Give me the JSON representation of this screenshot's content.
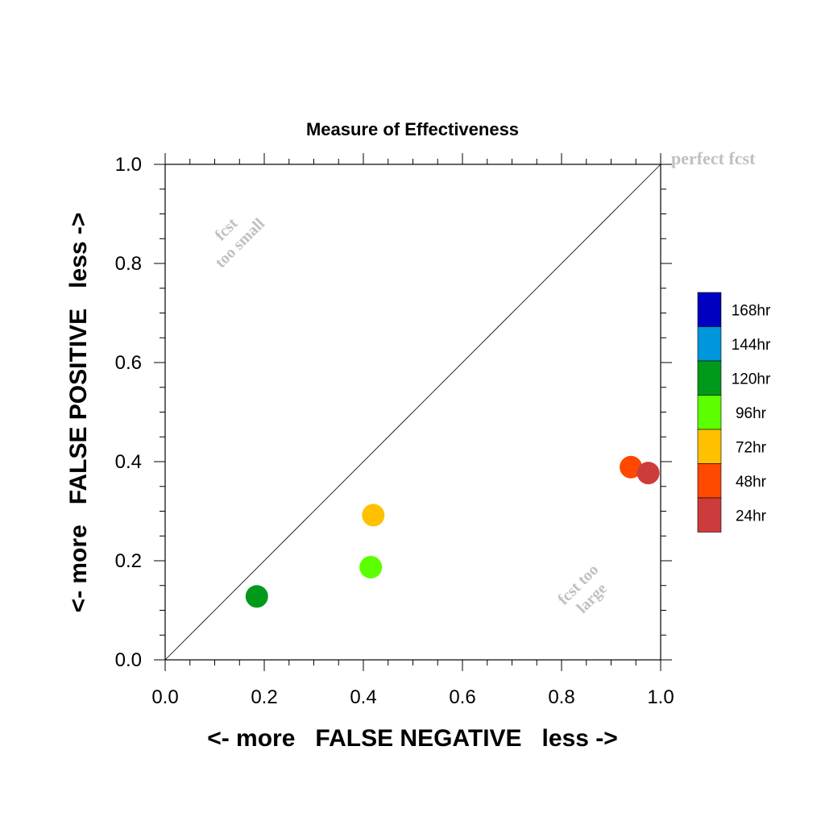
{
  "chart_data": {
    "type": "scatter",
    "title": "Measure of Effectiveness",
    "xlabel": "<- more   FALSE NEGATIVE   less ->",
    "ylabel": "<- more   FALSE POSITIVE   less ->",
    "xlim": [
      0,
      1
    ],
    "ylim": [
      0,
      1
    ],
    "x_ticks": [
      "0.0",
      "0.2",
      "0.4",
      "0.6",
      "0.8",
      "1.0"
    ],
    "y_ticks": [
      "0.0",
      "0.2",
      "0.4",
      "0.6",
      "0.8",
      "1.0"
    ],
    "grid": false,
    "diagonal_line": true,
    "annotations": {
      "perfect": "perfect fcst",
      "too_small_line1": "fcst",
      "too_small_line2": "too small",
      "too_large_line1": "fcst too",
      "too_large_line2": "large"
    },
    "legend": {
      "placement": "right",
      "entries": [
        {
          "label": "168hr",
          "color": "#0000c0"
        },
        {
          "label": "144hr",
          "color": "#0096dc"
        },
        {
          "label": "120hr",
          "color": "#009a1a"
        },
        {
          "label": "96hr",
          "color": "#5cff00"
        },
        {
          "label": "72hr",
          "color": "#ffc000"
        },
        {
          "label": "48hr",
          "color": "#ff4800"
        },
        {
          "label": "24hr",
          "color": "#cd3c3c"
        }
      ]
    },
    "points": [
      {
        "label": "120hr",
        "x": 0.185,
        "y": 0.128,
        "color": "#009a1a"
      },
      {
        "label": "96hr",
        "x": 0.415,
        "y": 0.187,
        "color": "#5cff00"
      },
      {
        "label": "72hr",
        "x": 0.42,
        "y": 0.292,
        "color": "#ffc000"
      },
      {
        "label": "48hr",
        "x": 0.94,
        "y": 0.389,
        "color": "#ff4800"
      },
      {
        "label": "24hr",
        "x": 0.975,
        "y": 0.377,
        "color": "#cd3c3c"
      }
    ]
  }
}
